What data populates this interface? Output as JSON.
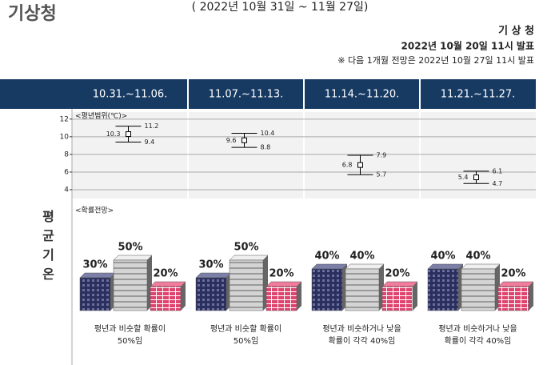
{
  "header": {
    "agency": "기상청",
    "period": "( 2022년 10월 31일 ~ 11월 27일)",
    "issuer": "기 상 청",
    "issued": "2022년 10월 20일 11시 발표",
    "next_note": "※ 다음 1개월 전망은 2022년 10월 27일 11시 발표"
  },
  "periods": [
    "10.31.~11.06.",
    "11.07.~11.13.",
    "11.14.~11.20.",
    "11.21.~11.27."
  ],
  "row_label": "평균기온",
  "chart_data": {
    "type": "errorbar",
    "title": "<평년범위(℃)>",
    "means": [
      10.3,
      9.6,
      6.8,
      5.4
    ],
    "highs": [
      11.2,
      10.4,
      7.9,
      6.1
    ],
    "lows": [
      9.4,
      8.8,
      5.7,
      4.7
    ],
    "ylim": [
      3,
      12.8
    ],
    "yticks": [
      4,
      6,
      8,
      10,
      12
    ],
    "grid": true
  },
  "probability": {
    "title": "<확률전망>",
    "columns": [
      {
        "below": "30%",
        "normal": "50%",
        "above": "20%",
        "caption": [
          "평년과 비슷할 확률이",
          "50%임"
        ]
      },
      {
        "below": "30%",
        "normal": "50%",
        "above": "20%",
        "caption": [
          "평년과 비슷할 확률이",
          "50%임"
        ]
      },
      {
        "below": "40%",
        "normal": "40%",
        "above": "20%",
        "caption": [
          "평년과 비슷하거나 낮을",
          "확률이 각각 40%임"
        ]
      },
      {
        "below": "40%",
        "normal": "40%",
        "above": "20%",
        "caption": [
          "평년과 비슷하거나 낮을",
          "확률이 각각 40%임"
        ]
      }
    ]
  }
}
